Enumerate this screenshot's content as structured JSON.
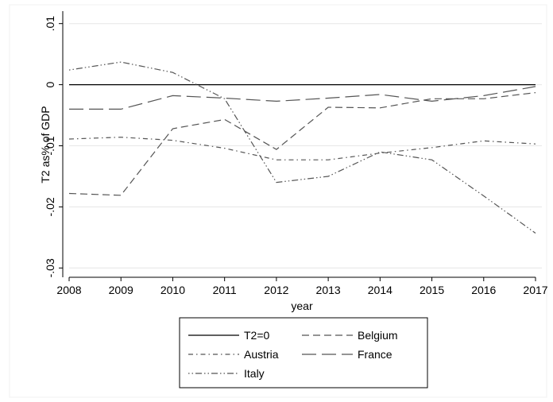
{
  "chart_data": {
    "type": "line",
    "xlabel": "year",
    "ylabel": "T2 as% of GDP",
    "x": [
      2008,
      2009,
      2010,
      2011,
      2012,
      2013,
      2014,
      2015,
      2016,
      2017
    ],
    "x_ticks": [
      "2008",
      "2009",
      "2010",
      "2011",
      "2012",
      "2013",
      "2014",
      "2015",
      "2016",
      "2017"
    ],
    "y_ticks": [
      ".01",
      "0",
      "-.01",
      "-.02",
      "-.03"
    ],
    "y_tick_values": [
      0.01,
      0,
      -0.01,
      -0.02,
      -0.03
    ],
    "ylim": [
      -0.031,
      0.011
    ],
    "grid": "horizontal",
    "legend_position": "bottom",
    "series": [
      {
        "name": "T2=0",
        "style": "solid",
        "values": [
          0,
          0,
          0,
          0,
          0,
          0,
          0,
          0,
          0,
          0
        ]
      },
      {
        "name": "Belgium",
        "style": "short-dash",
        "values": [
          -0.0178,
          -0.0181,
          -0.0072,
          -0.0057,
          -0.0106,
          -0.0037,
          -0.0038,
          -0.0023,
          -0.0023,
          -0.0013
        ]
      },
      {
        "name": "Austria",
        "style": "dash-dot",
        "values": [
          -0.0089,
          -0.0086,
          -0.0091,
          -0.0104,
          -0.0123,
          -0.0123,
          -0.0112,
          -0.0103,
          -0.0092,
          -0.0097
        ]
      },
      {
        "name": "France",
        "style": "long-dash",
        "values": [
          -0.004,
          -0.004,
          -0.0018,
          -0.0022,
          -0.0027,
          -0.0022,
          -0.0016,
          -0.0027,
          -0.0018,
          -0.0003
        ]
      },
      {
        "name": "Italy",
        "style": "long-dash-dot",
        "values": [
          0.0024,
          0.0037,
          0.002,
          -0.0023,
          -0.016,
          -0.015,
          -0.011,
          -0.0123,
          -0.0182,
          -0.0243
        ]
      }
    ],
    "legend_order": [
      "T2=0",
      "Belgium",
      "Austria",
      "France",
      "Italy"
    ]
  }
}
